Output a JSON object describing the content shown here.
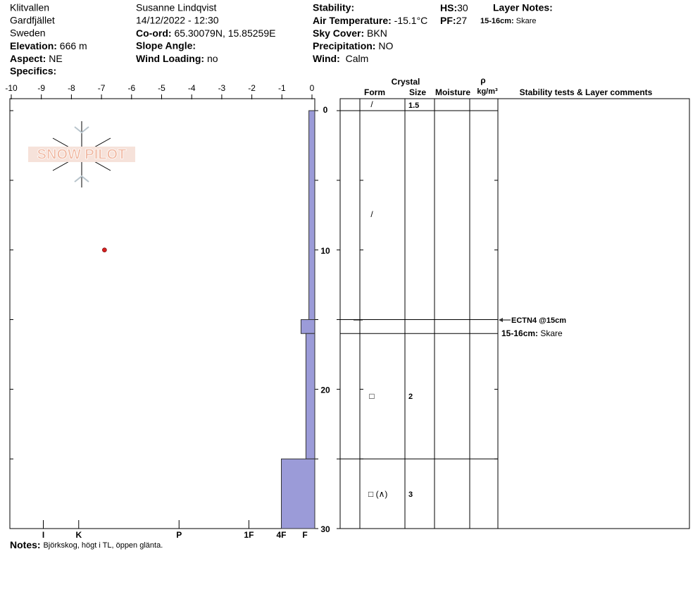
{
  "header": {
    "site": "Klitvallen",
    "area": "Gardfjället",
    "country": "Sweden",
    "elevation": {
      "label": "Elevation:",
      "value": "666 m"
    },
    "aspect": {
      "label": "Aspect:",
      "value": "NE"
    },
    "specifics": {
      "label": "Specifics:"
    },
    "observer": "Susanne Lindqvist",
    "datetime": "14/12/2022 - 12:30",
    "coord": {
      "label": "Co-ord:",
      "value": "65.30079N, 15.85259E"
    },
    "slope": {
      "label": "Slope Angle:"
    },
    "wind_loading": {
      "label": "Wind Loading:",
      "value": "no"
    },
    "stability": {
      "label": "Stability:"
    },
    "air_temp": {
      "label": "Air Temperature:",
      "value": "-15.1°C"
    },
    "sky": {
      "label": "Sky Cover:",
      "value": "BKN"
    },
    "precip": {
      "label": "Precipitation:",
      "value": "NO"
    },
    "wind": {
      "label": "Wind:",
      "value": "Calm"
    },
    "hs": {
      "label": "HS:",
      "value": "30"
    },
    "pf": {
      "label": "PF:",
      "value": "27"
    },
    "layer_notes": {
      "label": "Layer Notes:",
      "depth": "15-16cm:",
      "text": "Skare"
    }
  },
  "logo": "SNOW PILOT",
  "chart_data": {
    "type": "snow_profile",
    "xlim": [
      -10,
      0
    ],
    "xticks": [
      -10,
      -9,
      -8,
      -7,
      -6,
      -5,
      -4,
      -3,
      -2,
      -1,
      0
    ],
    "ylim": [
      0,
      30
    ],
    "yticks": [
      0,
      10,
      20,
      30
    ],
    "yticks_minor": [
      5,
      15,
      25
    ],
    "hardness_lim": [
      0,
      31
    ],
    "hardness_ticks": [
      {
        "value": 27.6,
        "label": "I"
      },
      {
        "value": 24.0,
        "label": "K"
      },
      {
        "value": 13.8,
        "label": "P"
      },
      {
        "value": 6.7,
        "label": "1F"
      },
      {
        "value": 3.4,
        "label": "4F"
      },
      {
        "value": 1.0,
        "label": "F"
      }
    ],
    "color": "#9b9bd8",
    "layers": [
      {
        "top": 0,
        "bottom": 15,
        "hardness": 0.6
      },
      {
        "top": 15,
        "bottom": 16,
        "hardness": 1.4
      },
      {
        "top": 16,
        "bottom": 25,
        "hardness": 0.9
      },
      {
        "top": 25,
        "bottom": 30,
        "hardness": 3.4
      }
    ],
    "temperature": {
      "depth": [
        10
      ],
      "values": [
        -6.9
      ],
      "color": "#d62020"
    }
  },
  "table": {
    "headers": {
      "crystal": "Crystal",
      "form": "Form",
      "size": "Size",
      "moisture": "Moisture",
      "rho": "ρ",
      "density": "kg/m³",
      "comments": "Stability tests & Layer comments"
    },
    "rows": [
      {
        "form": "/",
        "size": "1.5"
      },
      {
        "form": "/"
      },
      {
        "form": "□",
        "size": "2"
      },
      {
        "form": "□ (∧)",
        "size": "3"
      }
    ],
    "test": "ECTN4 @15cm",
    "comment": {
      "depth": "15-16cm:",
      "text": "Skare"
    }
  },
  "notes": {
    "label": "Notes:",
    "text": "Björkskog, högt i TL, öppen glänta."
  }
}
